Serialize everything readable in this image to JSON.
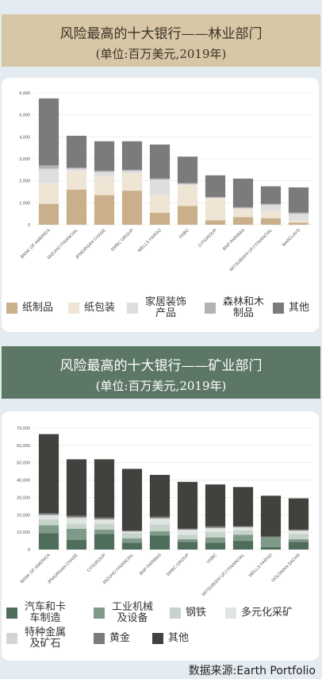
{
  "chart_data": [
    {
      "type": "stacked-bar",
      "title": "风险最高的十大银行——林业部门",
      "subtitle": "(单位:百万美元,2019年)",
      "categories": [
        "BANK OF AMERICA",
        "MIZUHO FINANCIAL",
        "JPMORGAN CHASE",
        "SMBC GROUP",
        "WELLS FARGO",
        "HSBC",
        "CITIGROUP",
        "BNP PARIBAS",
        "MITSUBISHI UFJ FINANCIAL",
        "BARCLAYS"
      ],
      "series": [
        {
          "name": "纸制品",
          "color": "#c9b08b",
          "values": [
            950,
            1600,
            1350,
            1550,
            550,
            850,
            200,
            350,
            300,
            100
          ]
        },
        {
          "name": "纸包装",
          "color": "#efe5d5",
          "values": [
            950,
            850,
            850,
            800,
            800,
            950,
            1000,
            350,
            350,
            100
          ]
        },
        {
          "name": "家居装饰产品",
          "color": "#dedede",
          "values": [
            650,
            100,
            200,
            100,
            700,
            50,
            50,
            50,
            250,
            300
          ]
        },
        {
          "name": "森林和木制品",
          "color": "#b3b3b3",
          "values": [
            150,
            50,
            50,
            50,
            50,
            50,
            0,
            50,
            50,
            50
          ]
        },
        {
          "name": "其他",
          "color": "#7b7b7b",
          "values": [
            3050,
            1450,
            1350,
            1300,
            1550,
            1200,
            1000,
            1300,
            800,
            1150
          ]
        }
      ],
      "ylim": [
        0,
        6000
      ],
      "yticks": [
        0,
        {
          "value": 1000,
          "label": "1,000"
        },
        {
          "value": 2000,
          "label": "2,000"
        },
        {
          "value": 3000,
          "label": "3,000"
        },
        {
          "value": 4000,
          "label": "4,000"
        },
        {
          "value": 5000,
          "label": "5,000"
        },
        {
          "value": 6000,
          "label": "6,000"
        }
      ],
      "grid": true
    },
    {
      "type": "stacked-bar",
      "title": "风险最高的十大银行——矿业部门",
      "subtitle": "(单位:百万美元,2019年)",
      "categories": [
        "BANK OF AMERICA",
        "JPMORGAN CHASE",
        "CITIGROUP",
        "MIZUHO FINANCIAL",
        "BNP PARIBAS",
        "SMBC GROUP",
        "HSBC",
        "MITSUBISHI UFJ FINANCIAL",
        "WELLS FARGO",
        "GOLDMAN SACHS"
      ],
      "series": [
        {
          "name": "汽车和卡车制造",
          "color": "#4f6d5b",
          "values": [
            9500,
            5500,
            9000,
            4000,
            8000,
            4500,
            4000,
            5000,
            1500,
            4500
          ]
        },
        {
          "name": "工业机械及设备",
          "color": "#809a8a",
          "values": [
            4500,
            6500,
            2500,
            2500,
            2500,
            1500,
            3000,
            3500,
            5500,
            1500
          ]
        },
        {
          "name": "钢铁",
          "color": "#c5d3ca",
          "values": [
            3500,
            3000,
            3500,
            3000,
            4000,
            2500,
            3000,
            2500,
            0,
            3000
          ]
        },
        {
          "name": "多元化采矿",
          "color": "#dfe6e1",
          "values": [
            2000,
            2500,
            2000,
            500,
            3000,
            2500,
            2000,
            1500,
            0,
            1500
          ]
        },
        {
          "name": "特种金属及矿石",
          "color": "#d4d4d4",
          "values": [
            500,
            1000,
            500,
            500,
            500,
            500,
            500,
            500,
            0,
            500
          ]
        },
        {
          "name": "黄金",
          "color": "#7b7b77",
          "values": [
            1000,
            1000,
            1000,
            500,
            1000,
            500,
            1000,
            500,
            500,
            500
          ]
        },
        {
          "name": "其他",
          "color": "#41413e",
          "values": [
            45500,
            32500,
            33500,
            35500,
            24000,
            27000,
            24000,
            22500,
            23500,
            18000
          ]
        }
      ],
      "ylim": [
        0,
        70000
      ],
      "yticks": [
        0,
        {
          "value": 10000,
          "label": "10,000"
        },
        {
          "value": 20000,
          "label": "20,000"
        },
        {
          "value": 30000,
          "label": "30,000"
        },
        {
          "value": 40000,
          "label": "40,000"
        },
        {
          "value": 50000,
          "label": "50,000"
        },
        {
          "value": 60000,
          "label": "60,000"
        },
        {
          "value": 70000,
          "label": "70,000"
        }
      ],
      "grid": true
    }
  ],
  "source": "数据来源:Earth Portfolio"
}
